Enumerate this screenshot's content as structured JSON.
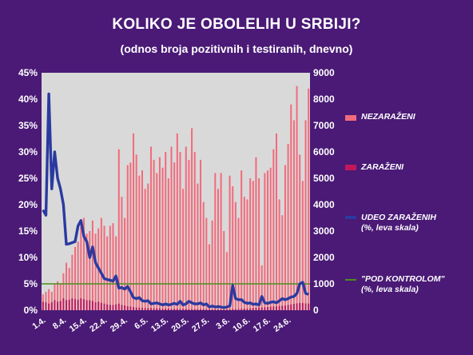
{
  "title": "KOLIKO JE OBOLELIH U SRBIJI?",
  "subtitle": "(odnos broja pozitivnih i testiranih, dnevno)",
  "colors": {
    "background": "#4a1a76",
    "plot_area": "#d9d9d9",
    "nezarazeni": "#f26b7c",
    "zarazeni": "#c2185b",
    "udeo": "#2b3aa0",
    "pod_kontrolom": "#4b8f1a"
  },
  "legend": [
    {
      "key": "nezarazeni",
      "label_line1": "NEZARAŽENI",
      "label_line2": ""
    },
    {
      "key": "zarazeni",
      "label_line1": "ZARAŽENI",
      "label_line2": ""
    },
    {
      "key": "udeo",
      "label_line1": "UDEO ZARAŽENIH",
      "label_line2": "(%, leva skala)"
    },
    {
      "key": "pod_kontrolom",
      "label_line1": "\"POD KONTROLOM\"",
      "label_line2": "(%, leva skala)"
    }
  ],
  "chart_data": {
    "type": "bar",
    "title": "KOLIKO JE OBOLELIH U SRBIJI?",
    "subtitle": "(odnos broja pozitivnih i testiranih, dnevno)",
    "left_axis": {
      "ticks": [
        "0%",
        "5%",
        "10%",
        "15%",
        "20%",
        "25%",
        "30%",
        "35%",
        "40%",
        "45%"
      ],
      "ylim": [
        0,
        45
      ]
    },
    "right_axis": {
      "ticks": [
        "0",
        "1000",
        "2000",
        "3000",
        "4000",
        "5000",
        "6000",
        "7000",
        "8000",
        "9000"
      ],
      "ylim": [
        0,
        9000
      ]
    },
    "x_tick_labels": [
      "1.4.",
      "8.4.",
      "15.4.",
      "22.4.",
      "29.4.",
      "6.5.",
      "13.5.",
      "20.5.",
      "27.5.",
      "3.6.",
      "10.6.",
      "17.6.",
      "24.6."
    ],
    "x_tick_every_days": 7,
    "start_label": "1.4.",
    "series": [
      {
        "name": "NEZARAŽENI",
        "axis": "right",
        "values": [
          600,
          700,
          800,
          700,
          1000,
          1100,
          1000,
          1400,
          1800,
          1600,
          2100,
          2400,
          2600,
          3200,
          3500,
          2900,
          3000,
          3400,
          2900,
          3100,
          3500,
          3200,
          2800,
          3200,
          3300,
          2800,
          6100,
          4300,
          3500,
          5500,
          5600,
          6700,
          5900,
          5100,
          5300,
          4600,
          4800,
          6200,
          5700,
          5200,
          5800,
          5400,
          6000,
          5000,
          6200,
          5600,
          6700,
          6000,
          4600,
          6200,
          5700,
          6900,
          6000,
          4800,
          5700,
          4100,
          3500,
          2500,
          3400,
          5200,
          4600,
          5200,
          3000,
          2200,
          5100,
          4700,
          4100,
          3500,
          5300,
          4300,
          4200,
          5000,
          4900,
          5800,
          5000,
          1700,
          5200,
          5300,
          5400,
          6100,
          6700,
          4200,
          3600,
          5500,
          6300,
          7800,
          7200,
          8500,
          5900,
          4900,
          7200,
          8400
        ]
      },
      {
        "name": "ZARAŽENI",
        "axis": "right",
        "values": [
          320,
          300,
          250,
          300,
          380,
          320,
          350,
          450,
          380,
          400,
          450,
          420,
          400,
          450,
          420,
          380,
          380,
          350,
          300,
          320,
          280,
          250,
          220,
          200,
          200,
          220,
          250,
          200,
          180,
          150,
          140,
          120,
          100,
          100,
          90,
          80,
          80,
          80,
          70,
          70,
          70,
          60,
          60,
          60,
          50,
          50,
          50,
          50,
          50,
          50,
          40,
          40,
          40,
          40,
          40,
          40,
          40,
          30,
          30,
          30,
          30,
          30,
          30,
          30,
          40,
          40,
          40,
          50,
          50,
          60,
          60,
          70,
          80,
          90,
          100,
          100,
          110,
          120,
          130,
          140,
          150,
          160,
          170,
          180,
          200,
          220,
          240,
          260,
          280,
          270,
          260,
          250
        ]
      },
      {
        "name": "UDEO ZARAŽENIH",
        "axis": "left",
        "values": [
          19,
          18,
          41,
          23,
          30,
          25,
          23,
          20,
          12.5,
          12.6,
          12.8,
          13,
          16,
          17,
          14,
          13,
          10,
          12,
          9,
          8,
          7,
          6,
          5.8,
          5.7,
          5.5,
          6.5,
          4.2,
          4.3,
          4,
          4.5,
          3.5,
          2.4,
          2.2,
          2.4,
          1.8,
          1.7,
          1.8,
          1.2,
          1.3,
          1.4,
          1.2,
          1.0,
          1.2,
          1.0,
          1.1,
          1.3,
          1.1,
          1.7,
          1.0,
          1.2,
          1.7,
          1.4,
          1.2,
          1.2,
          1.4,
          1.0,
          1.2,
          0.6,
          0.8,
          0.6,
          0.7,
          0.6,
          0.5,
          0.6,
          0.8,
          4.7,
          2.2,
          2.0,
          2.0,
          1.5,
          1.3,
          1.4,
          1.1,
          1.2,
          1.0,
          2.6,
          1.4,
          1.3,
          1.5,
          1.6,
          1.4,
          1.8,
          2.2,
          2.0,
          2.2,
          2.5,
          2.6,
          3.2,
          5.0,
          5.3,
          3.2,
          3.0
        ]
      },
      {
        "name": "\"POD KONTROLOM\"",
        "axis": "left",
        "constant": 5
      }
    ]
  }
}
